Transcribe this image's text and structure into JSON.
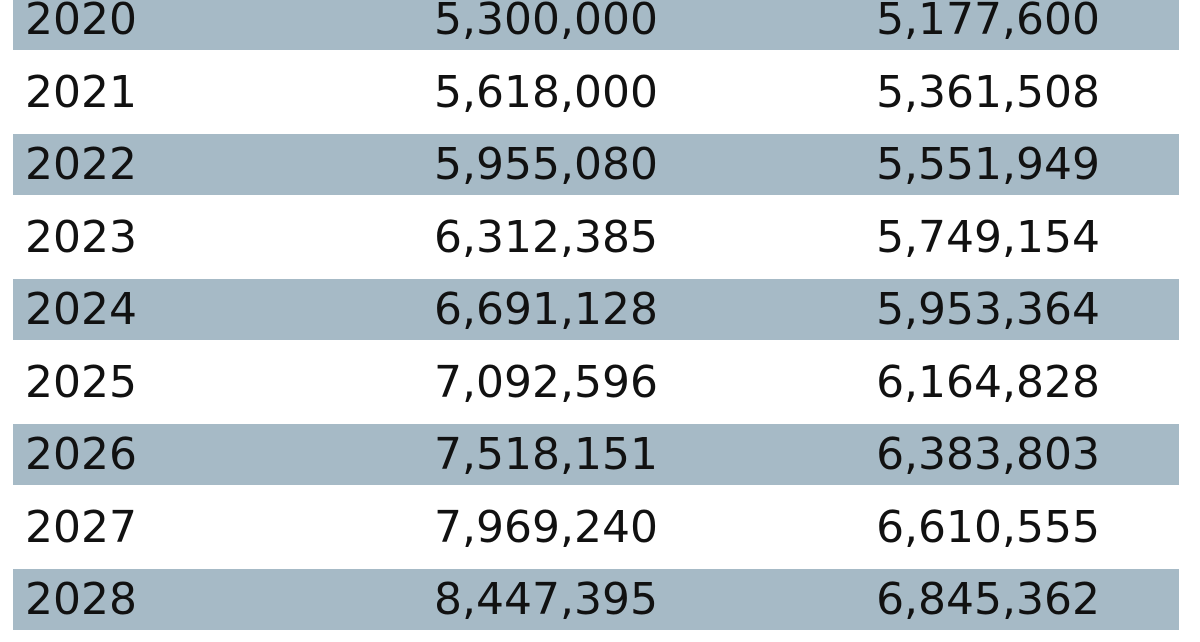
{
  "table": {
    "rows": [
      {
        "year": "2020",
        "col_a": "5,300,000",
        "col_b": "5,177,600"
      },
      {
        "year": "2021",
        "col_a": "5,618,000",
        "col_b": "5,361,508"
      },
      {
        "year": "2022",
        "col_a": "5,955,080",
        "col_b": "5,551,949"
      },
      {
        "year": "2023",
        "col_a": "6,312,385",
        "col_b": "5,749,154"
      },
      {
        "year": "2024",
        "col_a": "6,691,128",
        "col_b": "5,953,364"
      },
      {
        "year": "2025",
        "col_a": "7,092,596",
        "col_b": "6,164,828"
      },
      {
        "year": "2026",
        "col_a": "7,518,151",
        "col_b": "6,383,803"
      },
      {
        "year": "2027",
        "col_a": "7,969,240",
        "col_b": "6,610,555"
      },
      {
        "year": "2028",
        "col_a": "8,447,395",
        "col_b": "6,845,362"
      }
    ],
    "stripe_color": "#a6bac6",
    "text_color": "#111111"
  }
}
